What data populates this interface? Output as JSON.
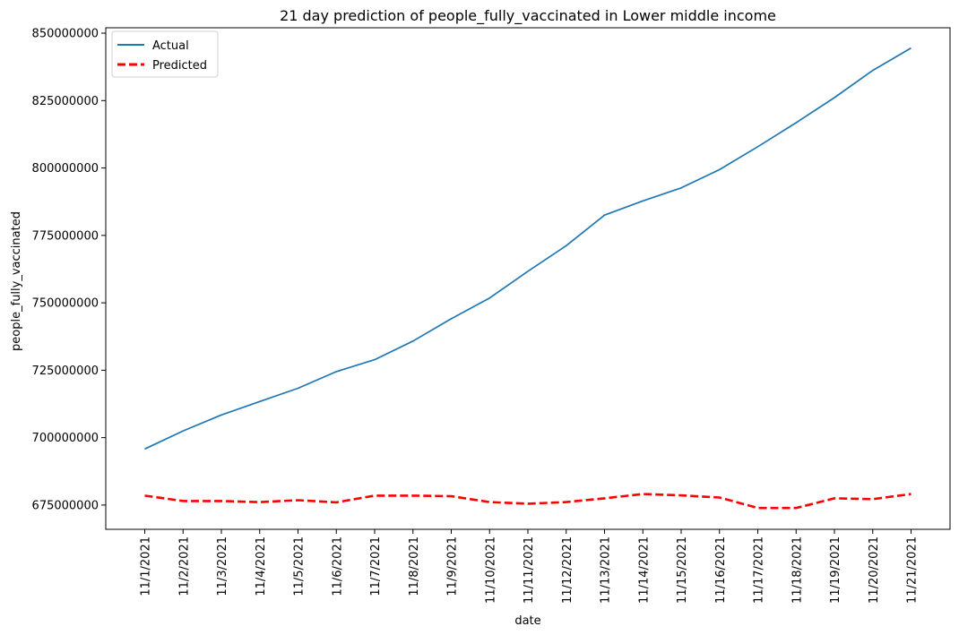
{
  "chart_data": {
    "type": "line",
    "title": "21 day prediction of people_fully_vaccinated in Lower middle income",
    "xlabel": "date",
    "ylabel": "people_fully_vaccinated",
    "categories": [
      "11/1/2021",
      "11/2/2021",
      "11/3/2021",
      "11/4/2021",
      "11/5/2021",
      "11/6/2021",
      "11/7/2021",
      "11/8/2021",
      "11/9/2021",
      "11/10/2021",
      "11/11/2021",
      "11/12/2021",
      "11/13/2021",
      "11/14/2021",
      "11/15/2021",
      "11/16/2021",
      "11/17/2021",
      "11/18/2021",
      "11/19/2021",
      "11/20/2021",
      "11/21/2021"
    ],
    "yticks": [
      675000000,
      700000000,
      725000000,
      750000000,
      775000000,
      800000000,
      825000000,
      850000000
    ],
    "ylim": [
      666000000,
      852000000
    ],
    "grid": false,
    "legend_position": "top-left",
    "series": [
      {
        "name": "Actual",
        "color": "#1f77b4",
        "style": "solid",
        "values": [
          695800000,
          702500000,
          708400000,
          713400000,
          718300000,
          724500000,
          728900000,
          735800000,
          744100000,
          751800000,
          761700000,
          771200000,
          782500000,
          787800000,
          792600000,
          799400000,
          807900000,
          816800000,
          826100000,
          836200000,
          844500000
        ]
      },
      {
        "name": "Predicted",
        "color": "#ff0000",
        "style": "dashed",
        "values": [
          678500000,
          676500000,
          676500000,
          676100000,
          676800000,
          676000000,
          678500000,
          678500000,
          678300000,
          676100000,
          675500000,
          676100000,
          677500000,
          679100000,
          678600000,
          677800000,
          673900000,
          673900000,
          677500000,
          677200000,
          679100000
        ]
      }
    ]
  }
}
